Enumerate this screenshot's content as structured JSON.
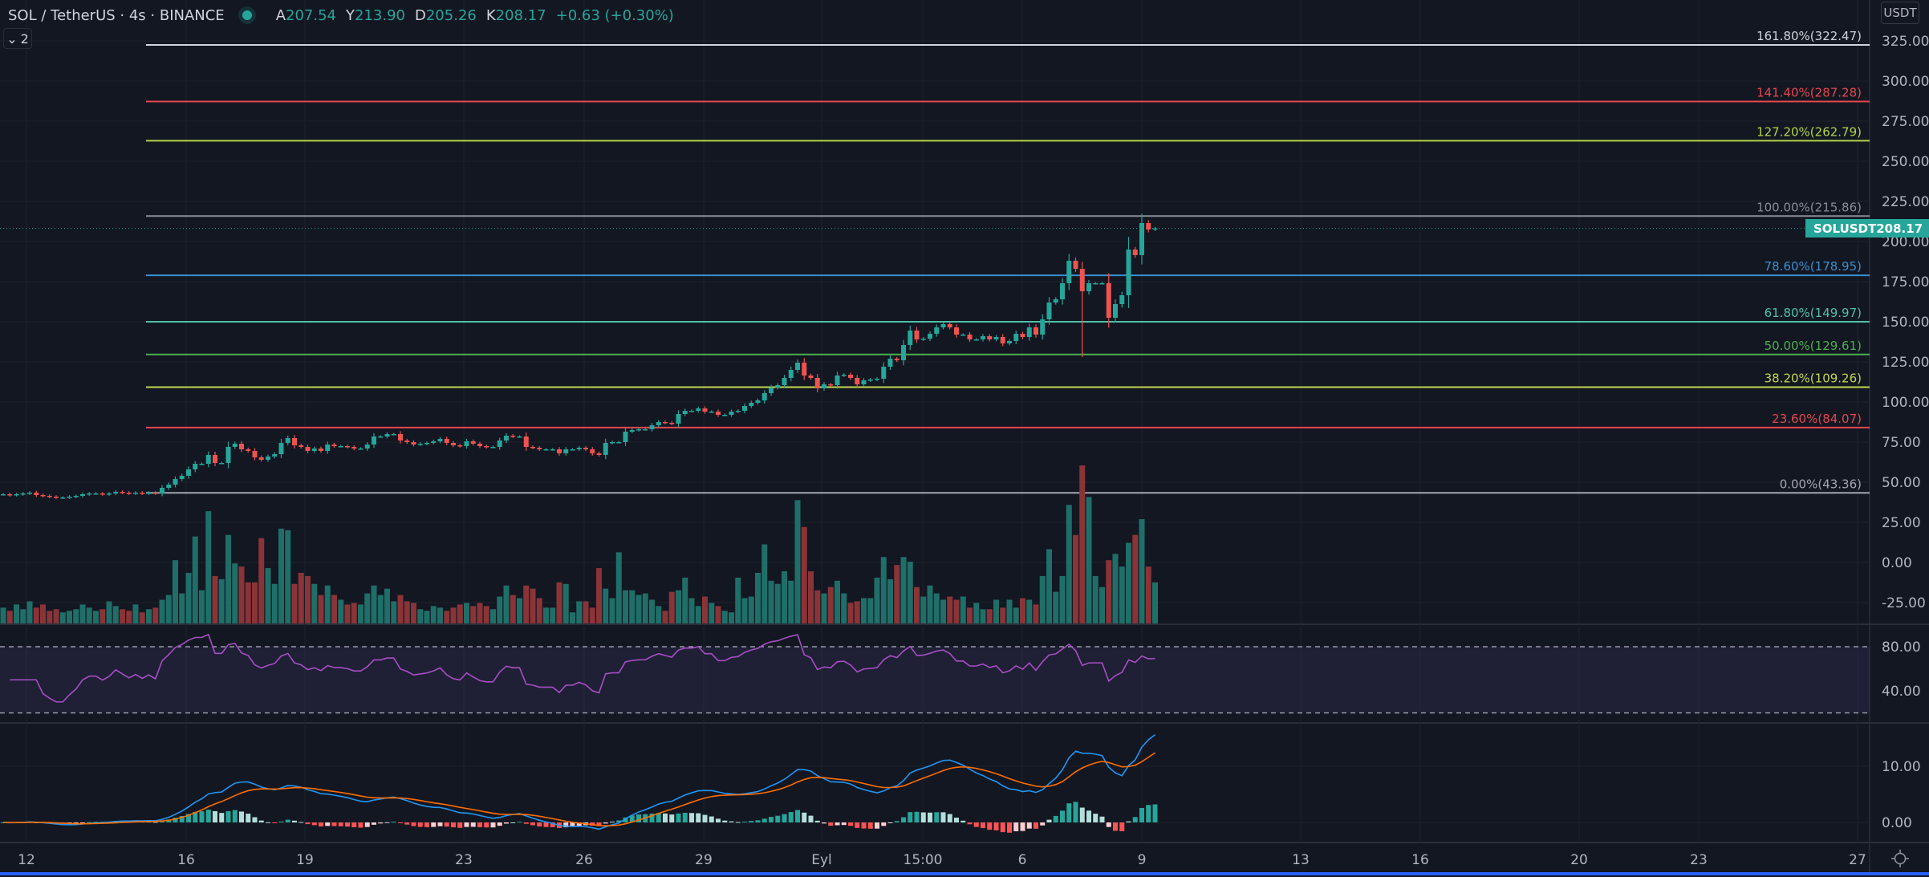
{
  "header": {
    "symbol": "SOL / TetherUS · 4s · BINANCE",
    "open_label": "A",
    "open": "207.54",
    "high_label": "Y",
    "high": "213.90",
    "low_label": "D",
    "low": "205.26",
    "close_label": "K",
    "close": "208.17",
    "change": "+0.63 (+0.30%)",
    "collapse_count": "2"
  },
  "price_axis": {
    "currency": "USDT",
    "ticks": [
      "325.00",
      "300.00",
      "275.00",
      "250.00",
      "225.00",
      "200.00",
      "175.00",
      "150.00",
      "125.00",
      "100.00",
      "75.00",
      "50.00",
      "25.00",
      "0.00",
      "-25.00"
    ],
    "last_price_tag": {
      "symbol": "SOLUSDT",
      "price": "208.17"
    }
  },
  "rsi_axis": {
    "ticks": [
      "80.00",
      "40.00"
    ]
  },
  "macd_axis": {
    "ticks": [
      "10.00",
      "0.00"
    ]
  },
  "time_axis": {
    "labels": [
      "12",
      "16",
      "19",
      "23",
      "26",
      "29",
      "Eyl",
      "15:00",
      "6",
      "9",
      "13",
      "16",
      "20",
      "23",
      "27"
    ]
  },
  "colors": {
    "background": "#131722",
    "up": "#26a69a",
    "down": "#ef5350",
    "rsi": "#a64fc4",
    "macd": "#2196f3",
    "signal": "#ff6d00",
    "accent": "#2962ff"
  },
  "chart_data": {
    "type": "candlestick",
    "title": "",
    "ylim": [
      -35,
      335
    ],
    "grid": true,
    "last_close": 208.17,
    "closes": [
      42.5,
      42,
      42.5,
      43,
      43.5,
      42,
      41.5,
      41,
      40.5,
      40.5,
      41,
      41.5,
      42.5,
      43,
      43,
      42.5,
      43,
      44,
      43.5,
      43,
      43.5,
      43,
      43.5,
      43,
      46.5,
      48.5,
      52,
      54,
      58,
      61.5,
      61.5,
      67,
      62,
      62,
      72,
      74,
      70.5,
      69.5,
      65.5,
      64,
      66,
      67.5,
      74.5,
      77.5,
      73,
      72,
      69.5,
      71,
      69.5,
      73.5,
      72.5,
      72.5,
      72,
      71,
      71,
      73.5,
      78.5,
      78.5,
      80,
      80,
      76,
      75,
      73.5,
      74,
      74.5,
      75.5,
      77,
      74.5,
      73,
      72.5,
      75.5,
      74,
      72.5,
      72,
      72,
      76,
      79,
      78.5,
      78.5,
      72,
      71.5,
      70.5,
      70.5,
      70.5,
      68,
      70.5,
      70.5,
      71.5,
      70.5,
      68,
      67,
      74.5,
      75,
      75,
      81.5,
      82.5,
      83,
      83,
      85.5,
      87.5,
      87,
      86.5,
      92.5,
      94.5,
      94.5,
      96,
      94,
      94,
      92,
      92,
      94,
      94.5,
      97.5,
      99.5,
      101,
      105.5,
      109,
      110.5,
      115,
      120,
      124.5,
      116.5,
      115,
      108.5,
      111,
      110.5,
      116.5,
      117,
      115,
      111,
      113.5,
      114,
      114.5,
      122,
      127,
      126,
      135.5,
      144.5,
      139,
      139.5,
      142.5,
      146.5,
      148.5,
      146.5,
      142,
      142,
      139,
      139,
      141,
      139,
      140.5,
      136.5,
      138,
      142.5,
      140.5,
      146.5,
      142,
      151.5,
      162,
      164,
      174,
      188,
      183,
      169,
      174,
      174,
      174,
      152.5,
      161,
      166.5,
      195,
      191.5,
      211.5,
      207.5,
      208.17
    ],
    "low_overrides": {
      "163": 128
    },
    "volumes": [
      10,
      8,
      12,
      9,
      14,
      10,
      12,
      8,
      9,
      7,
      8,
      9,
      12,
      10,
      8,
      9,
      14,
      11,
      9,
      8,
      12,
      7,
      9,
      10,
      15,
      18,
      40,
      19,
      32,
      55,
      21,
      71,
      30,
      28,
      56,
      38,
      36,
      26,
      26,
      54,
      35,
      25,
      60,
      59,
      25,
      32,
      30,
      25,
      18,
      24,
      18,
      15,
      12,
      13,
      12,
      19,
      24,
      18,
      22,
      14,
      18,
      14,
      13,
      9,
      8,
      11,
      10,
      8,
      10,
      12,
      13,
      11,
      13,
      11,
      9,
      17,
      24,
      18,
      16,
      24,
      22,
      16,
      10,
      10,
      26,
      25,
      7,
      14,
      14,
      10,
      35,
      22,
      16,
      45,
      21,
      21,
      18,
      19,
      15,
      11,
      8,
      20,
      21,
      29,
      16,
      11,
      17,
      13,
      11,
      8,
      7,
      29,
      16,
      17,
      32,
      50,
      27,
      25,
      33,
      27,
      78,
      61,
      33,
      21,
      19,
      23,
      27,
      19,
      13,
      14,
      16,
      16,
      29,
      42,
      28,
      37,
      42,
      39,
      23,
      17,
      24,
      19,
      15,
      17,
      15,
      17,
      10,
      13,
      9,
      9,
      15,
      10,
      15,
      10,
      16,
      15,
      12,
      30,
      47,
      20,
      30,
      75,
      56,
      100,
      80,
      30,
      23,
      40,
      44,
      36,
      51,
      56,
      66,
      36,
      26
    ],
    "fibonacci": [
      {
        "label": "161.80%(322.47)",
        "value": 322.47,
        "color": "#d1d4dc"
      },
      {
        "label": "141.40%(287.28)",
        "value": 287.28,
        "color": "#e5474f"
      },
      {
        "label": "127.20%(262.79)",
        "value": 262.79,
        "color": "#b4d44a"
      },
      {
        "label": "100.00%(215.86)",
        "value": 215.86,
        "color": "#8a8d96"
      },
      {
        "label": "78.60%(178.95)",
        "value": 178.95,
        "color": "#3a8fd0"
      },
      {
        "label": "61.80%(149.97)",
        "value": 149.97,
        "color": "#4fc0a8"
      },
      {
        "label": "50.00%(129.61)",
        "value": 129.61,
        "color": "#4caf50"
      },
      {
        "label": "38.20%(109.26)",
        "value": 109.26,
        "color": "#c3d84e"
      },
      {
        "label": "23.60%(84.07)",
        "value": 84.07,
        "color": "#e5474f"
      },
      {
        "label": "0.00%(43.36)",
        "value": 43.36,
        "color": "#a3a6af"
      }
    ]
  }
}
